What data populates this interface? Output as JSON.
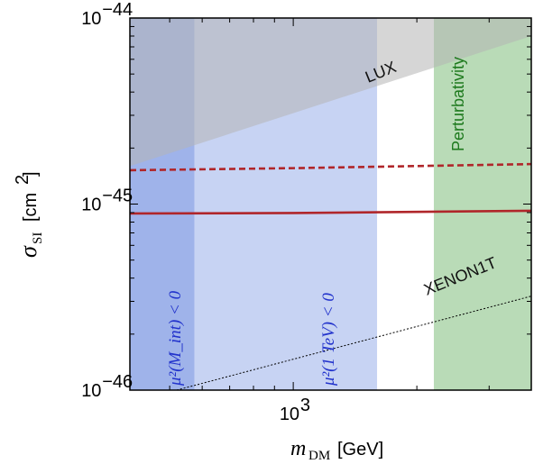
{
  "chart_data": {
    "type": "line",
    "x_scale": "log",
    "y_scale": "log",
    "xlim": [
      400,
      3800
    ],
    "ylim": [
      1e-46,
      1e-44
    ],
    "xlabel": "m_DM [GeV]",
    "ylabel": "σ_SI [cm^2]",
    "x_tick_labels": [
      {
        "value": 1000,
        "label": "10^3"
      }
    ],
    "y_tick_labels": [
      {
        "value": 1e-46,
        "label": "10^-46"
      },
      {
        "value": 1e-45,
        "label": "10^-45"
      },
      {
        "value": 1e-44,
        "label": "10^-44"
      }
    ],
    "grid": false,
    "regions": [
      {
        "name": "μ²(M_int) < 0",
        "x_range": [
          400,
          575
        ],
        "color": "#9fb3ea"
      },
      {
        "name": "μ²(1 TeV) < 0",
        "x_range": [
          575,
          1600
        ],
        "color": "#c7d3f3"
      },
      {
        "name": "Perturbativity",
        "x_range": [
          2200,
          3800
        ],
        "color": "#b9dbb7"
      }
    ],
    "exclusions": [
      {
        "name": "LUX",
        "type": "band_above",
        "x": [
          400,
          3800
        ],
        "y": [
          1.6e-45,
          8e-45
        ],
        "color": "#b4b4b4"
      }
    ],
    "series": [
      {
        "name": "",
        "style": "solid",
        "color": "#b0262a",
        "x": [
          400,
          1000,
          3800
        ],
        "y": [
          8.9e-46,
          8.95e-46,
          9.2e-46
        ]
      },
      {
        "name": "",
        "style": "dashed",
        "color": "#b0262a",
        "x": [
          400,
          1000,
          3800
        ],
        "y": [
          1.52e-45,
          1.56e-45,
          1.64e-45
        ]
      },
      {
        "name": "XENON1T",
        "style": "dotted",
        "color": "#000000",
        "x": [
          520,
          3800
        ],
        "y": [
          1e-46,
          3.2e-46
        ]
      }
    ],
    "labels": {
      "lux": "LUX",
      "perturbativity": "Perturbativity",
      "xenon": "XENON1T",
      "mu_int": "μ²(M_int) < 0",
      "mu_tev": "μ²(1 TeV) < 0"
    }
  }
}
